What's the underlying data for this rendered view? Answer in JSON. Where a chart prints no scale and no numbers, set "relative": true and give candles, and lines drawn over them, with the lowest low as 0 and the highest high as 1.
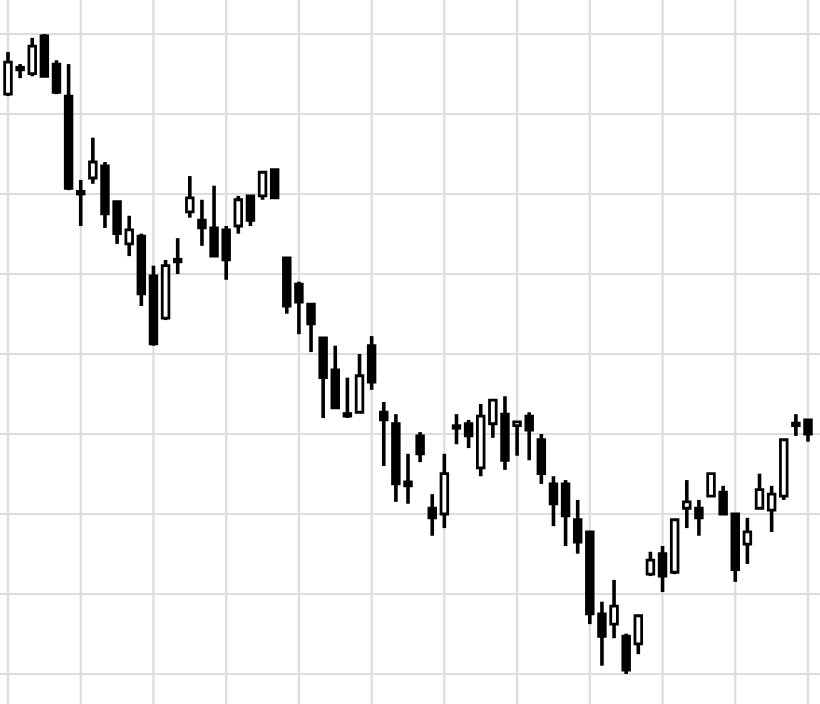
{
  "chart_data": {
    "type": "candlestick",
    "relative": true,
    "grid": true,
    "tick_labels": false,
    "color": "#000000",
    "categories": [
      null,
      null,
      null,
      null,
      null,
      null,
      null,
      null,
      null,
      null,
      null,
      null,
      null,
      null,
      null,
      null,
      null,
      null,
      null,
      null,
      null,
      null,
      null,
      null,
      null,
      null,
      null,
      null,
      null,
      null,
      null,
      null,
      null,
      null,
      null,
      null,
      null,
      null,
      null,
      null,
      null,
      null,
      null,
      null,
      null,
      null,
      null,
      null,
      null,
      null,
      null,
      null,
      null,
      null,
      null,
      null,
      null,
      null,
      null,
      null,
      null,
      null,
      null,
      null,
      null,
      null,
      null
    ],
    "ohlc": [
      [
        0.906,
        0.972,
        0.903,
        0.956
      ],
      [
        0.944,
        0.953,
        0.931,
        0.947
      ],
      [
        0.938,
        0.994,
        0.934,
        0.981
      ],
      [
        0.997,
        1,
        0.934,
        0.934
      ],
      [
        0.953,
        0.959,
        0.906,
        0.909
      ],
      [
        0.903,
        0.953,
        0.756,
        0.759
      ],
      [
        0.75,
        0.772,
        0.7,
        0.753
      ],
      [
        0.775,
        0.838,
        0.766,
        0.8
      ],
      [
        0.794,
        0.8,
        0.697,
        0.719
      ],
      [
        0.738,
        0.738,
        0.672,
        0.688
      ],
      [
        0.672,
        0.716,
        0.653,
        0.694
      ],
      [
        0.684,
        0.688,
        0.575,
        0.594
      ],
      [
        0.622,
        0.638,
        0.513,
        0.516
      ],
      [
        0.556,
        0.647,
        0.553,
        0.638
      ],
      [
        0.644,
        0.681,
        0.625,
        0.647
      ],
      [
        0.722,
        0.778,
        0.713,
        0.744
      ],
      [
        0.709,
        0.741,
        0.669,
        0.697
      ],
      [
        0.697,
        0.763,
        0.653,
        0.653
      ],
      [
        0.694,
        0.7,
        0.616,
        0.647
      ],
      [
        0.7,
        0.747,
        0.688,
        0.741
      ],
      [
        0.747,
        0.747,
        0.7,
        0.709
      ],
      [
        0.747,
        0.784,
        0.741,
        0.784
      ],
      [
        0.788,
        0.788,
        0.744,
        0.744
      ],
      [
        0.65,
        0.65,
        0.563,
        0.575
      ],
      [
        0.609,
        0.613,
        0.531,
        0.581
      ],
      [
        0.578,
        0.578,
        0.503,
        0.547
      ],
      [
        0.525,
        0.525,
        0.4,
        0.463
      ],
      [
        0.475,
        0.513,
        0.416,
        0.416
      ],
      [
        0.403,
        0.463,
        0.4,
        0.406
      ],
      [
        0.409,
        0.5,
        0.409,
        0.466
      ],
      [
        0.513,
        0.528,
        0.444,
        0.456
      ],
      [
        0.409,
        0.425,
        0.325,
        0.397
      ],
      [
        0.391,
        0.406,
        0.269,
        0.297
      ],
      [
        0.3,
        0.344,
        0.266,
        0.294
      ],
      [
        0.372,
        0.378,
        0.331,
        0.344
      ],
      [
        0.259,
        0.281,
        0.216,
        0.244
      ],
      [
        0.25,
        0.344,
        0.228,
        0.313
      ],
      [
        0.388,
        0.406,
        0.359,
        0.384
      ],
      [
        0.391,
        0.397,
        0.353,
        0.372
      ],
      [
        0.322,
        0.422,
        0.309,
        0.403
      ],
      [
        0.391,
        0.428,
        0.369,
        0.428
      ],
      [
        0.406,
        0.434,
        0.319,
        0.334
      ],
      [
        0.388,
        0.394,
        0.341,
        0.394
      ],
      [
        0.403,
        0.409,
        0.334,
        0.381
      ],
      [
        0.366,
        0.375,
        0.297,
        0.313
      ],
      [
        0.297,
        0.309,
        0.231,
        0.266
      ],
      [
        0.297,
        0.303,
        0.2,
        0.247
      ],
      [
        0.241,
        0.272,
        0.188,
        0.206
      ],
      [
        0.222,
        0.222,
        0.078,
        0.094
      ],
      [
        0.094,
        0.113,
        0.013,
        0.059
      ],
      [
        0.078,
        0.147,
        0.056,
        0.106
      ],
      [
        0.059,
        0.063,
        0,
        0.006
      ],
      [
        0.047,
        0.091,
        0.031,
        0.091
      ],
      [
        0.156,
        0.191,
        0.153,
        0.178
      ],
      [
        0.188,
        0.2,
        0.128,
        0.153
      ],
      [
        0.159,
        0.241,
        0.156,
        0.241
      ],
      [
        0.259,
        0.303,
        0.228,
        0.269
      ],
      [
        0.259,
        0.272,
        0.216,
        0.244
      ],
      [
        0.278,
        0.313,
        0.278,
        0.313
      ],
      [
        0.284,
        0.294,
        0.25,
        0.25
      ],
      [
        0.25,
        0.25,
        0.144,
        0.163
      ],
      [
        0.203,
        0.244,
        0.172,
        0.222
      ],
      [
        0.259,
        0.313,
        0.259,
        0.288
      ],
      [
        0.256,
        0.294,
        0.222,
        0.281
      ],
      [
        0.278,
        0.366,
        0.272,
        0.366
      ],
      [
        0.388,
        0.406,
        0.372,
        0.391
      ],
      [
        0.397,
        0.397,
        0.363,
        0.375
      ]
    ]
  }
}
